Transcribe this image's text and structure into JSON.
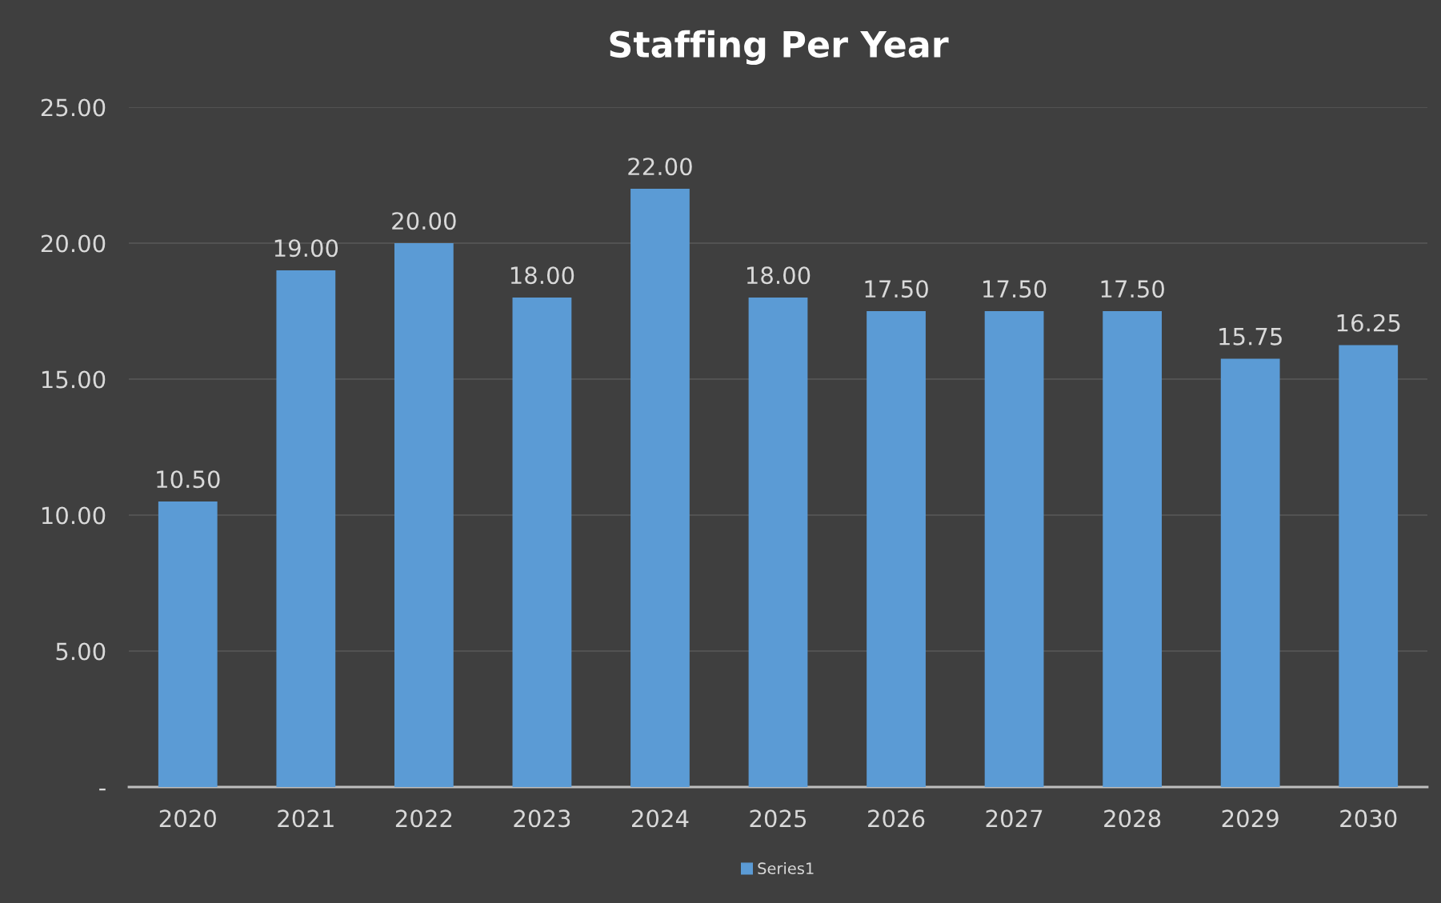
{
  "chart_data": {
    "type": "bar",
    "title": "Staffing Per Year",
    "categories": [
      "2020",
      "2021",
      "2022",
      "2023",
      "2024",
      "2025",
      "2026",
      "2027",
      "2028",
      "2029",
      "2030"
    ],
    "series": [
      {
        "name": "Series1",
        "color": "#5b9bd5",
        "values": [
          10.5,
          19,
          20,
          18,
          22,
          18,
          17.5,
          17.5,
          17.5,
          15.75,
          16.25
        ],
        "value_labels": [
          "10.50",
          "19.00",
          "20.00",
          "18.00",
          "22.00",
          "18.00",
          "17.50",
          "17.50",
          "17.50",
          "15.75",
          "16.25"
        ]
      }
    ],
    "ylim": [
      0,
      25
    ],
    "yticks": [
      {
        "value": 0,
        "label": "-"
      },
      {
        "value": 5,
        "label": "5.00"
      },
      {
        "value": 10,
        "label": "10.00"
      },
      {
        "value": 15,
        "label": "15.00"
      },
      {
        "value": 20,
        "label": "20.00"
      },
      {
        "value": 25,
        "label": "25.00"
      }
    ],
    "grid": "y",
    "legend": "bottom"
  }
}
